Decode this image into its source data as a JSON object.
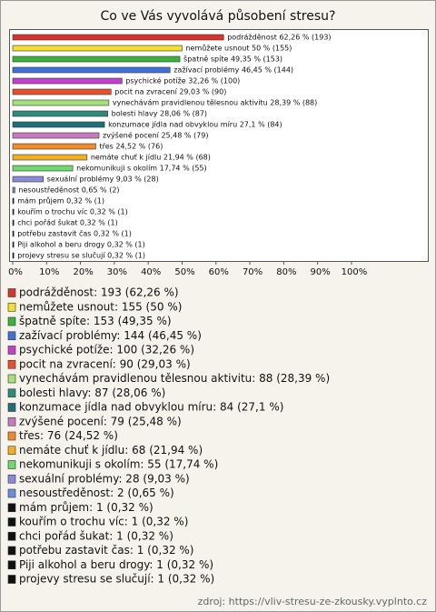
{
  "chart_data": {
    "type": "bar",
    "orientation": "horizontal",
    "title": "Co ve Vás vyvolává působení stresu?",
    "categories": [
      "podrážděnost",
      "nemůžete usnout",
      "špatně spíte",
      "zažívací problémy",
      "psychické potíže",
      "pocit na zvracení",
      "vynechávám pravidlenou tělesnou aktivitu",
      "bolesti hlavy",
      "konzumace jídla nad obvyklou míru",
      "zvýšené pocení",
      "třes",
      "nemáte chuť k jídlu",
      "nekomunikuji s okolím",
      "sexuální problémy",
      "nesoustředěnost",
      "mám průjem",
      "kouřím o trochu víc",
      "chci pořád šukat",
      "potřebu zastavit čas",
      "Piji alkohol a beru drogy",
      "projevy stresu se slučují"
    ],
    "values": [
      62.26,
      50,
      49.35,
      46.45,
      32.26,
      29.03,
      28.39,
      28.06,
      27.1,
      25.48,
      24.52,
      21.94,
      17.74,
      9.03,
      0.65,
      0.32,
      0.32,
      0.32,
      0.32,
      0.32,
      0.32
    ],
    "value_labels": [
      "podrážděnost 62,26 % (193)",
      "nemůžete usnout 50 % (155)",
      "špatně spíte 49,35 % (153)",
      "zažívací problémy 46,45 % (144)",
      "psychické potíže 32,26 % (100)",
      "pocit na zvracení 29,03 % (90)",
      "vynechávám pravidlenou tělesnou aktivitu 28,39 % (88)",
      "bolesti hlavy 28,06 % (87)",
      "konzumace jídla nad obvyklou míru 27,1 % (84)",
      "zvýšené pocení 25,48 % (79)",
      "třes 24,52 % (76)",
      "nemáte chuť k jídlu 21,94 % (68)",
      "nekomunikuji s okolím 17,74 % (55)",
      "sexuální problémy 9,03 % (28)",
      "nesoustředěnost 0,65 % (2)",
      "mám průjem 0,32 % (1)",
      "kouřím o trochu víc 0,32 % (1)",
      "chci pořád šukat 0,32 % (1)",
      "potřebu zastavit čas 0,32 % (1)",
      "Piji alkohol a beru drogy 0,32 % (1)",
      "projevy stresu se slučují 0,32 % (1)"
    ],
    "legend_labels": [
      "podrážděnost: 193 (62,26 %)",
      "nemůžete usnout: 155 (50 %)",
      "špatně spíte: 153 (49,35 %)",
      "zažívací problémy: 144 (46,45 %)",
      "psychické potíže: 100 (32,26 %)",
      "pocit na zvracení: 90 (29,03 %)",
      "vynechávám pravidlenou tělesnou aktivitu: 88 (28,39 %)",
      "bolesti hlavy: 87 (28,06 %)",
      "konzumace jídla nad obvyklou míru: 84 (27,1 %)",
      "zvýšené pocení: 79 (25,48 %)",
      "třes: 76 (24,52 %)",
      "nemáte chuť k jídlu: 68 (21,94 %)",
      "nekomunikuji s okolím: 55 (17,74 %)",
      "sexuální problémy: 28 (9,03 %)",
      "nesoustředěnost: 2 (0,65 %)",
      "mám průjem: 1 (0,32 %)",
      "kouřím o trochu víc: 1 (0,32 %)",
      "chci pořád šukat: 1 (0,32 %)",
      "potřebu zastavit čas: 1 (0,32 %)",
      "Piji alkohol a beru drogy: 1 (0,32 %)",
      "projevy stresu se slučují: 1 (0,32 %)"
    ],
    "colors": [
      "#d8342c",
      "#f2e02c",
      "#3bb33b",
      "#3f6fd8",
      "#c23fd0",
      "#e8502a",
      "#a6e07a",
      "#2e8b7a",
      "#1f6f7a",
      "#c77ac0",
      "#f08a2a",
      "#f0b020",
      "#6fd86f",
      "#8a8ad8",
      "#6a8fd8",
      "#111111",
      "#111111",
      "#111111",
      "#111111",
      "#111111",
      "#111111"
    ],
    "xlim": [
      0,
      122
    ],
    "xticks": [
      {
        "value": 0,
        "label": "0%"
      },
      {
        "value": 10,
        "label": "10%"
      },
      {
        "value": 20,
        "label": "20%"
      },
      {
        "value": 30,
        "label": "30%"
      },
      {
        "value": 40,
        "label": "40%"
      },
      {
        "value": 50,
        "label": "50%"
      },
      {
        "value": 60,
        "label": "60%"
      },
      {
        "value": 70,
        "label": "70%"
      },
      {
        "value": 80,
        "label": "80%"
      },
      {
        "value": 90,
        "label": "90%"
      },
      {
        "value": 100,
        "label": "100%"
      }
    ],
    "source": "zdroj: https://vliv-stresu-ze-zkousky.vyplnto.cz"
  }
}
